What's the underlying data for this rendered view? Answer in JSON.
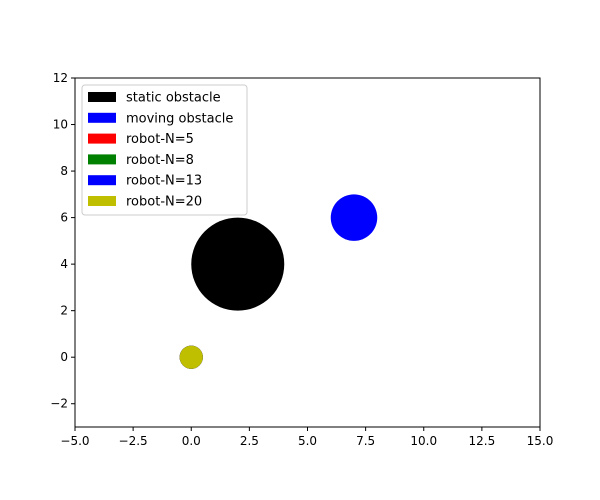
{
  "chart_data": {
    "type": "scatter",
    "title": "",
    "xlabel": "",
    "ylabel": "",
    "xlim": [
      -5,
      15
    ],
    "ylim": [
      -3,
      12
    ],
    "xticks": [
      -5.0,
      -2.5,
      0.0,
      2.5,
      5.0,
      7.5,
      10.0,
      12.5,
      15.0
    ],
    "xtick_labels": [
      "−5.0",
      "−2.5",
      "0.0",
      "2.5",
      "5.0",
      "7.5",
      "10.0",
      "12.5",
      "15.0"
    ],
    "yticks": [
      -2,
      0,
      2,
      4,
      6,
      8,
      10,
      12
    ],
    "ytick_labels": [
      "−2",
      "0",
      "2",
      "4",
      "6",
      "8",
      "10",
      "12"
    ],
    "grid": false,
    "legend_placement": "upper-left",
    "circles": [
      {
        "name": "static obstacle",
        "x": 2,
        "y": 4,
        "r": 2,
        "color": "#000000"
      },
      {
        "name": "moving obstacle",
        "x": 7,
        "y": 6,
        "r": 1,
        "color": "#0000ff"
      },
      {
        "name": "robot-N=5",
        "x": 0,
        "y": 0,
        "r": 0.5,
        "color": "#ff0000"
      },
      {
        "name": "robot-N=8",
        "x": 0,
        "y": 0,
        "r": 0.5,
        "color": "#008000"
      },
      {
        "name": "robot-N=13",
        "x": 0,
        "y": 0,
        "r": 0.5,
        "color": "#0000ff"
      },
      {
        "name": "robot-N=20",
        "x": 0,
        "y": 0,
        "r": 0.5,
        "color": "#bfbf00"
      }
    ],
    "legend": [
      {
        "label": "static obstacle",
        "color": "#000000"
      },
      {
        "label": "moving obstacle",
        "color": "#0000ff"
      },
      {
        "label": "robot-N=5",
        "color": "#ff0000"
      },
      {
        "label": "robot-N=8",
        "color": "#008000"
      },
      {
        "label": "robot-N=13",
        "color": "#0000ff"
      },
      {
        "label": "robot-N=20",
        "color": "#bfbf00"
      }
    ]
  }
}
